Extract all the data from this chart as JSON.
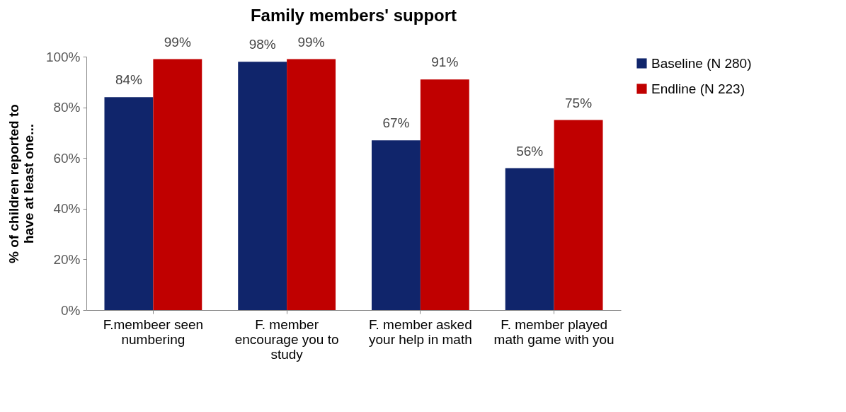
{
  "chart_data": {
    "type": "bar",
    "title": "Family members' support",
    "ylabel": "% of children reported to have at least one...",
    "categories": [
      "F.membeer seen numbering",
      "F. member encourage you to study",
      "F. member asked your help in math",
      "F. member played math game with you"
    ],
    "series": [
      {
        "name": "Baseline (N 280)",
        "color": "#10256b",
        "values": [
          84,
          98,
          67,
          56
        ],
        "value_labels": [
          "84%",
          "98%",
          "67%",
          "56%"
        ]
      },
      {
        "name": "Endline (N 223)",
        "color": "#c00000",
        "values": [
          99,
          99,
          91,
          75
        ],
        "value_labels": [
          "99%",
          "99%",
          "91%",
          "75%"
        ]
      }
    ],
    "ylim": [
      0,
      100
    ],
    "yticks": [
      {
        "value": 0,
        "label": "0%"
      },
      {
        "value": 20,
        "label": "20%"
      },
      {
        "value": 40,
        "label": "40%"
      },
      {
        "value": 60,
        "label": "60%"
      },
      {
        "value": 80,
        "label": "80%"
      },
      {
        "value": 100,
        "label": "100%"
      }
    ],
    "grid": false,
    "legend": "right"
  }
}
